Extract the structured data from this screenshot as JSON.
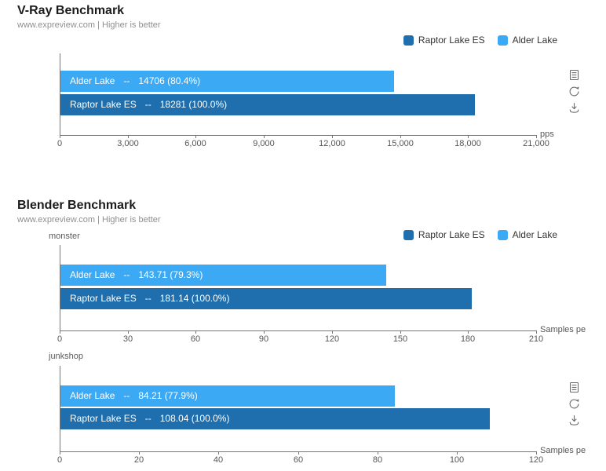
{
  "colors": {
    "raptor": "#1f6fae",
    "alder": "#3ca9f5",
    "axis": "#777777",
    "tick_text": "#555555",
    "bar_text": "#ffffff"
  },
  "separator": "--",
  "headers": [
    {
      "title": "V-Ray Benchmark",
      "subtitle": "www.expreview.com | Higher is better"
    },
    {
      "title": "Blender Benchmark",
      "subtitle": "www.expreview.com | Higher is better"
    }
  ],
  "legend": {
    "items": [
      {
        "series": "raptor",
        "label": "Raptor Lake ES"
      },
      {
        "series": "alder",
        "label": "Alder Lake"
      }
    ]
  },
  "toolbox": {
    "icons": [
      "data-view",
      "restore",
      "save-image"
    ]
  },
  "chart_data": [
    {
      "type": "bar",
      "id": "vray",
      "title": "V-Ray Benchmark",
      "section_label": "",
      "unit": "pps",
      "xlim": [
        0,
        21000
      ],
      "tick_labels": [
        "0",
        "3,000",
        "6,000",
        "9,000",
        "12,000",
        "15,000",
        "18,000",
        "21,000"
      ],
      "bars": [
        {
          "name": "Alder Lake",
          "series": "alder",
          "value": 14706,
          "display": "14706 (80.4%)"
        },
        {
          "name": "Raptor Lake ES",
          "series": "raptor",
          "value": 18281,
          "display": "18281 (100.0%)"
        }
      ]
    },
    {
      "type": "bar",
      "id": "blender-monster",
      "title": "Blender Benchmark",
      "section_label": "monster",
      "unit": "Samples pe",
      "xlim": [
        0,
        210
      ],
      "tick_labels": [
        "0",
        "30",
        "60",
        "90",
        "120",
        "150",
        "180",
        "210"
      ],
      "bars": [
        {
          "name": "Alder Lake",
          "series": "alder",
          "value": 143.71,
          "display": "143.71 (79.3%)"
        },
        {
          "name": "Raptor Lake ES",
          "series": "raptor",
          "value": 181.14,
          "display": "181.14 (100.0%)"
        }
      ]
    },
    {
      "type": "bar",
      "id": "blender-junkshop",
      "title": "Blender Benchmark",
      "section_label": "junkshop",
      "unit": "Samples pe",
      "xlim": [
        0,
        120
      ],
      "tick_labels": [
        "0",
        "20",
        "40",
        "60",
        "80",
        "100",
        "120"
      ],
      "bars": [
        {
          "name": "Alder Lake",
          "series": "alder",
          "value": 84.21,
          "display": "84.21 (77.9%)"
        },
        {
          "name": "Raptor Lake ES",
          "series": "raptor",
          "value": 108.04,
          "display": "108.04 (100.0%)"
        }
      ]
    }
  ]
}
